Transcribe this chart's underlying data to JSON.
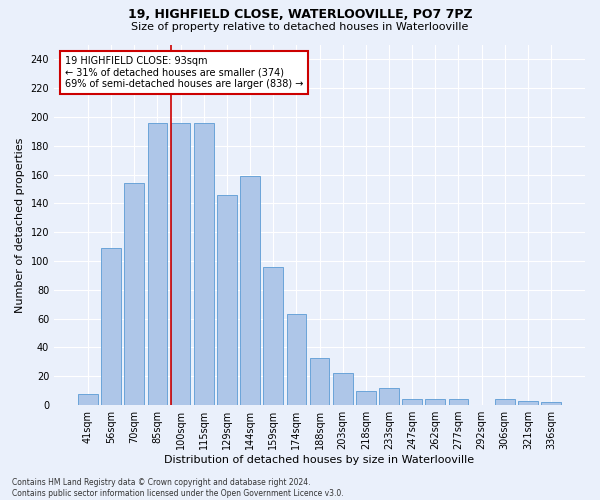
{
  "title": "19, HIGHFIELD CLOSE, WATERLOOVILLE, PO7 7PZ",
  "subtitle": "Size of property relative to detached houses in Waterlooville",
  "xlabel": "Distribution of detached houses by size in Waterlooville",
  "ylabel": "Number of detached properties",
  "bar_labels": [
    "41sqm",
    "56sqm",
    "70sqm",
    "85sqm",
    "100sqm",
    "115sqm",
    "129sqm",
    "144sqm",
    "159sqm",
    "174sqm",
    "188sqm",
    "203sqm",
    "218sqm",
    "233sqm",
    "247sqm",
    "262sqm",
    "277sqm",
    "292sqm",
    "306sqm",
    "321sqm",
    "336sqm"
  ],
  "bar_values": [
    8,
    109,
    154,
    196,
    196,
    196,
    146,
    159,
    96,
    63,
    33,
    22,
    10,
    12,
    4,
    4,
    4,
    0,
    4,
    3,
    2
  ],
  "bar_color": "#aec6e8",
  "bar_edgecolor": "#5b9bd5",
  "annotation_text": "19 HIGHFIELD CLOSE: 93sqm\n← 31% of detached houses are smaller (374)\n69% of semi-detached houses are larger (838) →",
  "annotation_box_color": "#ffffff",
  "annotation_border_color": "#cc0000",
  "vline_color": "#cc0000",
  "ylim": [
    0,
    250
  ],
  "yticks": [
    0,
    20,
    40,
    60,
    80,
    100,
    120,
    140,
    160,
    180,
    200,
    220,
    240
  ],
  "footer_text": "Contains HM Land Registry data © Crown copyright and database right 2024.\nContains public sector information licensed under the Open Government Licence v3.0.",
  "background_color": "#eaf0fb",
  "grid_color": "#ffffff",
  "bar_width": 0.85,
  "title_fontsize": 9,
  "subtitle_fontsize": 8,
  "xlabel_fontsize": 8,
  "ylabel_fontsize": 8,
  "tick_fontsize": 7,
  "annot_fontsize": 7,
  "footer_fontsize": 5.5
}
